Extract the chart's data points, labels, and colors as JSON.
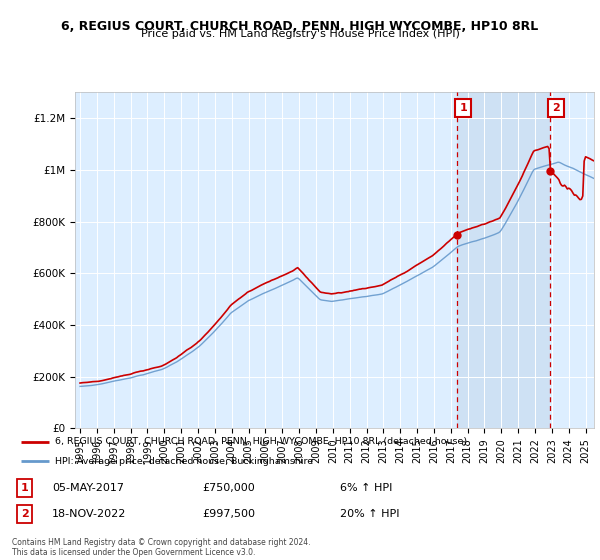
{
  "title": "6, REGIUS COURT, CHURCH ROAD, PENN, HIGH WYCOMBE, HP10 8RL",
  "subtitle": "Price paid vs. HM Land Registry's House Price Index (HPI)",
  "ylabel_ticks": [
    "£0",
    "£200K",
    "£400K",
    "£600K",
    "£800K",
    "£1M",
    "£1.2M"
  ],
  "ytick_values": [
    0,
    200000,
    400000,
    600000,
    800000,
    1000000,
    1200000
  ],
  "ylim": [
    0,
    1300000
  ],
  "xlim_start": 1994.7,
  "xlim_end": 2025.5,
  "sale1_year": 2017.35,
  "sale1_price": 750000,
  "sale1_label": "1",
  "sale1_date": "05-MAY-2017",
  "sale1_hpi": "6% ↑ HPI",
  "sale2_year": 2022.88,
  "sale2_price": 997500,
  "sale2_label": "2",
  "sale2_date": "18-NOV-2022",
  "sale2_hpi": "20% ↑ HPI",
  "legend_line1": "6, REGIUS COURT, CHURCH ROAD, PENN, HIGH WYCOMBE, HP10 8RL (detached house)",
  "legend_line2": "HPI: Average price, detached house, Buckinghamshire",
  "footer": "Contains HM Land Registry data © Crown copyright and database right 2024.\nThis data is licensed under the Open Government Licence v3.0.",
  "line_color_red": "#cc0000",
  "line_color_blue": "#6699cc",
  "bg_color": "#ddeeff",
  "highlight_color": "#c8dcf0",
  "annotation_box_color": "#cc0000",
  "dashed_line_color": "#cc0000"
}
